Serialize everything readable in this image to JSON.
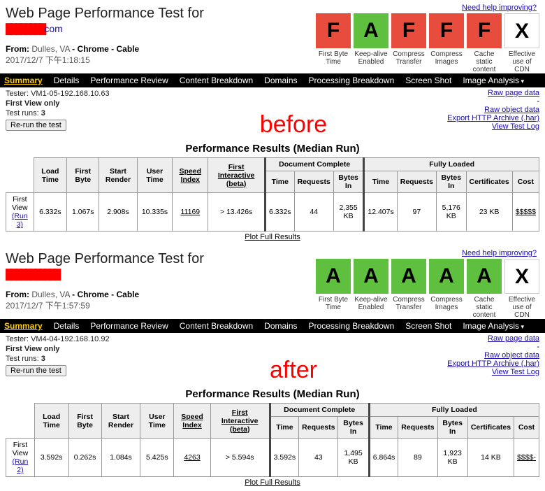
{
  "help_link": "Need help improving?",
  "grades_labels": {
    "fbt": "First Byte Time",
    "keepalive": "Keep-alive Enabled",
    "compress_transfer": "Compress Transfer",
    "compress_images": "Compress Images",
    "cache_static": "Cache static content",
    "cdn": "Effective use of CDN"
  },
  "grade_colors": {
    "A": "#5fbf3f",
    "F": "#e74c3c",
    "X": "#ffffff"
  },
  "nav": {
    "summary": "Summary",
    "details": "Details",
    "perf_review": "Performance Review",
    "content_breakdown": "Content Breakdown",
    "domains": "Domains",
    "processing_breakdown": "Processing Breakdown",
    "screenshot": "Screen Shot",
    "image_analysis": "Image Analysis"
  },
  "meta_links": {
    "raw_page": "Raw page data",
    "raw_object": "Raw object data",
    "export_har": "Export HTTP Archive (.har)",
    "view_log": "View Test Log"
  },
  "rerun_label": "Re-run the test",
  "results_title": "Performance Results (Median Run)",
  "plot_link": "Plot Full Results",
  "table_headers": {
    "load_time": "Load Time",
    "first_byte": "First Byte",
    "start_render": "Start Render",
    "user_time": "User Time",
    "speed_index": "Speed Index",
    "first_interactive": "First Interactive (beta)",
    "doc_complete": "Document Complete",
    "fully_loaded": "Fully Loaded",
    "time": "Time",
    "requests": "Requests",
    "bytes_in": "Bytes In",
    "certificates": "Certificates",
    "cost": "Cost"
  },
  "before": {
    "title": "Web Page Performance Test for",
    "url_suffix": "com",
    "from_prefix": "From:",
    "from_loc": "Dulles, VA",
    "from_rest": "Chrome - Cable",
    "timestamp": "2017/12/7 下午1:18:15",
    "grades": [
      "F",
      "A",
      "F",
      "F",
      "F",
      "X"
    ],
    "tester": "Tester: VM1-05-192.168.10.63",
    "first_view_only": "First View only",
    "test_runs_label": "Test runs:",
    "test_runs": "3",
    "overlay": "before",
    "row_label": "First View",
    "run_label": "(Run 3)",
    "cells": {
      "load_time": "6.332s",
      "first_byte": "1.067s",
      "start_render": "2.908s",
      "user_time": "10.335s",
      "speed_index": "11169",
      "first_interactive": "> 13.426s",
      "dc_time": "6.332s",
      "dc_requests": "44",
      "dc_bytes": "2,355 KB",
      "fl_time": "12.407s",
      "fl_requests": "97",
      "fl_bytes": "5,176 KB",
      "certificates": "23 KB",
      "cost": "$$$$$"
    }
  },
  "after": {
    "title": "Web Page Performance Test for",
    "url_suffix": "",
    "from_prefix": "From:",
    "from_loc": "Dulles, VA",
    "from_rest": "Chrome - Cable",
    "timestamp": "2017/12/7 下午1:57:59",
    "grades": [
      "A",
      "A",
      "A",
      "A",
      "A",
      "X"
    ],
    "tester": "Tester: VM4-04-192.168.10.92",
    "first_view_only": "First View only",
    "test_runs_label": "Test runs:",
    "test_runs": "3",
    "overlay": "after",
    "row_label": "First View",
    "run_label": "(Run 2)",
    "cells": {
      "load_time": "3.592s",
      "first_byte": "0.262s",
      "start_render": "1.084s",
      "user_time": "5.425s",
      "speed_index": "4263",
      "first_interactive": "> 5.594s",
      "dc_time": "3.592s",
      "dc_requests": "43",
      "dc_bytes": "1,495 KB",
      "fl_time": "6.864s",
      "fl_requests": "89",
      "fl_bytes": "1,923 KB",
      "certificates": "14 KB",
      "cost": "$$$$-"
    }
  }
}
